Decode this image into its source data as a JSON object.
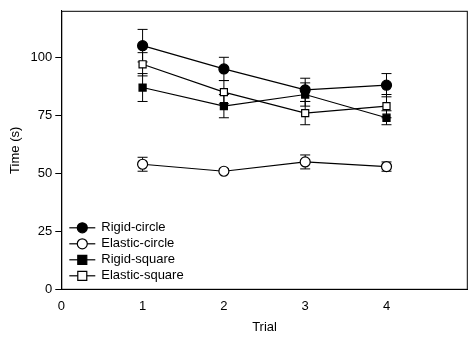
{
  "chart_data": {
    "type": "line",
    "x_label": "Trial",
    "y_label": "Time (s)",
    "x": [
      1,
      2,
      3,
      4
    ],
    "xlim": [
      0,
      5
    ],
    "xticks": [
      0,
      1,
      2,
      3,
      4
    ],
    "ylim": [
      0,
      120
    ],
    "yticks": [
      0,
      25,
      50,
      75,
      100
    ],
    "grid": false,
    "legend": "lower left",
    "series": [
      {
        "name": "Rigid-circle",
        "color": "#000000",
        "marker": "circle",
        "values": [
          105,
          95,
          86,
          88
        ],
        "errors": [
          7,
          5,
          5,
          5
        ]
      },
      {
        "name": "Elastic-circle",
        "color": "#000000",
        "marker": "open-circle",
        "values": [
          54,
          51,
          55,
          53
        ],
        "errors": [
          3,
          1,
          3,
          2
        ]
      },
      {
        "name": "Rigid-square",
        "color": "#000000",
        "marker": "square",
        "values": [
          87,
          79,
          84,
          74
        ],
        "errors": [
          6,
          5,
          5,
          3
        ]
      },
      {
        "name": "Elastic-square",
        "color": "#000000",
        "marker": "open-square",
        "values": [
          97,
          85,
          76,
          79
        ],
        "errors": [
          5,
          5,
          5,
          5
        ]
      }
    ]
  }
}
